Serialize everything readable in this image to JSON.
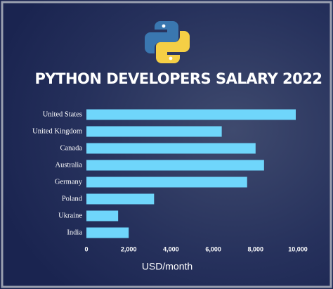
{
  "chart_data": {
    "type": "bar",
    "orientation": "horizontal",
    "title": "PYTHON DEVELOPERS SALARY 2022",
    "x_label": "USD/month",
    "categories": [
      "United States",
      "United Kingdom",
      "Canada",
      "Australia",
      "Germany",
      "Poland",
      "Ukraine",
      "India"
    ],
    "values": [
      9900,
      6400,
      8000,
      8400,
      7600,
      3200,
      1500,
      2000
    ],
    "color": "#6fd6fb",
    "xlim": [
      0,
      10000
    ],
    "xticks": [
      0,
      {
        "value": 2000,
        "label": "2,000"
      },
      {
        "value": 4000,
        "label": "4,000"
      },
      {
        "value": 6000,
        "label": "6,000"
      },
      {
        "value": 8000,
        "label": "8,000"
      },
      {
        "value": 10000,
        "label": "10,000"
      }
    ]
  }
}
